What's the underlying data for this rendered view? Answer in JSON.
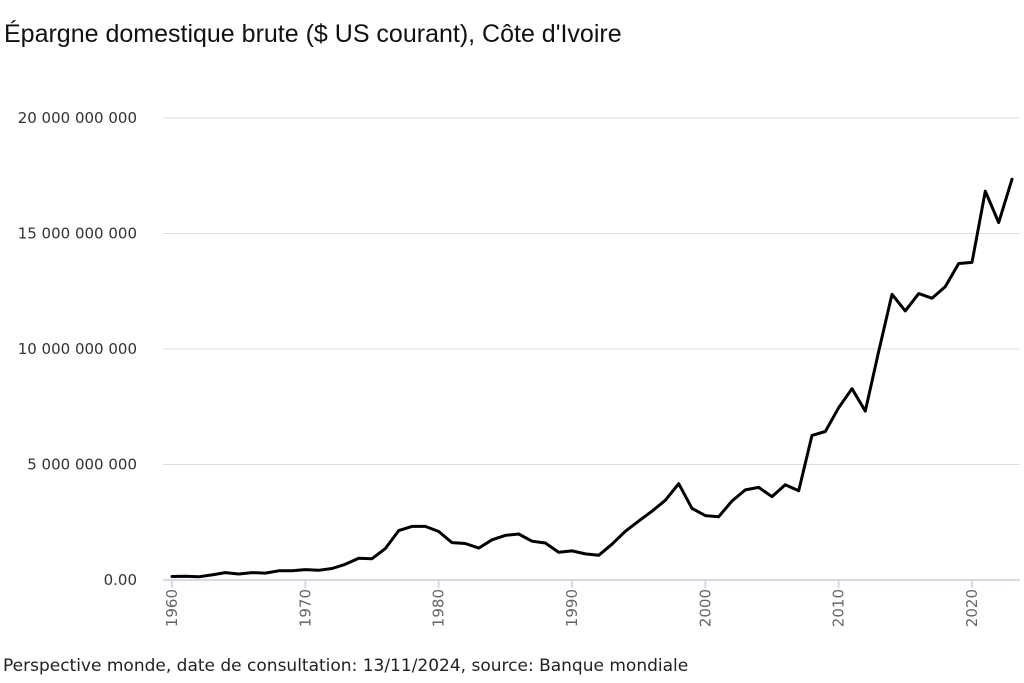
{
  "chart_data": {
    "type": "line",
    "title": "Épargne domestique brute ($ US courant), Côte d'Ivoire",
    "source": "Perspective monde, date de consultation: 13/11/2024, source: Banque mondiale",
    "xlabel": "",
    "ylabel": "",
    "xlim": [
      1960,
      2023
    ],
    "ylim": [
      0,
      20000000000
    ],
    "yticks": [
      0,
      5000000000,
      10000000000,
      15000000000,
      20000000000
    ],
    "ytick_labels": [
      "0.00",
      "5 000 000 000",
      "10 000 000 000",
      "15 000 000 000",
      "20 000 000 000"
    ],
    "xticks": [
      1960,
      1970,
      1980,
      1990,
      2000,
      2010,
      2020
    ],
    "xtick_labels": [
      "1960",
      "1970",
      "1980",
      "1990",
      "2000",
      "2010",
      "2020"
    ],
    "grid": true,
    "color": "#000000",
    "series": [
      {
        "x": [
          1960,
          1961,
          1962,
          1963,
          1964,
          1965,
          1966,
          1967,
          1968,
          1969,
          1970,
          1971,
          1972,
          1973,
          1974,
          1975,
          1976,
          1977,
          1978,
          1979,
          1980,
          1981,
          1982,
          1983,
          1984,
          1985,
          1986,
          1987,
          1988,
          1989,
          1990,
          1991,
          1992,
          1993,
          1994,
          1995,
          1996,
          1997,
          1998,
          1999,
          2000,
          2001,
          2002,
          2003,
          2004,
          2005,
          2006,
          2007,
          2008,
          2009,
          2010,
          2011,
          2012,
          2013,
          2014,
          2015,
          2016,
          2017,
          2018,
          2019,
          2020,
          2021,
          2022,
          2023
        ],
        "values": [
          150000000,
          160000000,
          140000000,
          220000000,
          320000000,
          260000000,
          320000000,
          300000000,
          400000000,
          400000000,
          450000000,
          420000000,
          500000000,
          680000000,
          940000000,
          920000000,
          1360000000,
          2140000000,
          2320000000,
          2320000000,
          2100000000,
          1620000000,
          1580000000,
          1380000000,
          1740000000,
          1930000000,
          1990000000,
          1680000000,
          1600000000,
          1200000000,
          1260000000,
          1130000000,
          1070000000,
          1550000000,
          2110000000,
          2550000000,
          2980000000,
          3450000000,
          4170000000,
          3100000000,
          2790000000,
          2740000000,
          3420000000,
          3900000000,
          4010000000,
          3610000000,
          4120000000,
          3860000000,
          6260000000,
          6430000000,
          7460000000,
          8280000000,
          7310000000,
          9900000000,
          12370000000,
          11650000000,
          12400000000,
          12200000000,
          12700000000,
          13700000000,
          13750000000,
          16830000000,
          15470000000,
          17350000000
        ]
      }
    ]
  }
}
